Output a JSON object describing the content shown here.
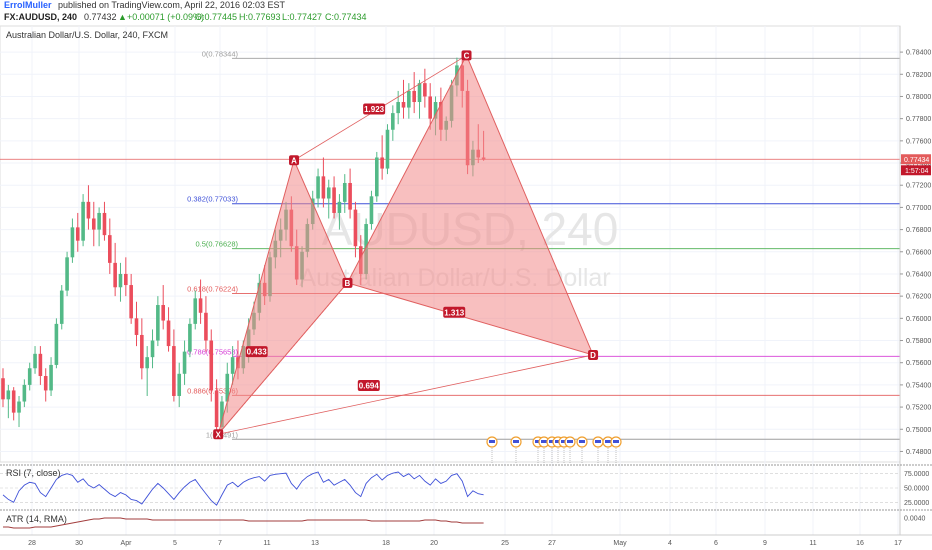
{
  "header": {
    "author": "ErrolMuller",
    "published": "published on TradingView.com, April 22, 2016 02:03 EST",
    "symbol_line": "FX:AUDUSD, 240",
    "change": "+0.00071 (+0.09%)",
    "open": "O:0.77445",
    "high": "H:0.77693",
    "low": "L:0.77427",
    "close": "C:0.77434",
    "last_value": "0.77432",
    "pane_title": "Australian Dollar/U.S. Dollar, 240, FXCM"
  },
  "watermark": {
    "symbol": "AUDUSD, 240",
    "name": "Australian Dollar/U.S. Dollar"
  },
  "price_tag": {
    "value": "0.77434",
    "countdown": "1:57:04"
  },
  "colors": {
    "up": "#53b987",
    "down": "#eb4d5c",
    "pattern_fill": "#f28b8b",
    "pattern_stroke": "#e06060",
    "label_bg": "#c2182b",
    "rsi": "#3f51d8",
    "atr": "#a23c3c",
    "price_line": "#e35b5b"
  },
  "chart_data": {
    "type": "candlestick",
    "y_range": [
      0.7475,
      0.785
    ],
    "y_ticks": [
      "0.78400",
      "0.78200",
      "0.78000",
      "0.77800",
      "0.77600",
      "0.77400",
      "0.77200",
      "0.77000",
      "0.76800",
      "0.76600",
      "0.76400",
      "0.76200",
      "0.76000",
      "0.75800",
      "0.75600",
      "0.75400",
      "0.75200",
      "0.75000",
      "0.74800"
    ],
    "x_ticks": [
      "28",
      "30",
      "Apr",
      "5",
      "7",
      "11",
      "13",
      "18",
      "20",
      "25",
      "27",
      "May",
      "4",
      "6",
      "9",
      "11",
      "16",
      "17"
    ],
    "candles": [
      [
        0.7546,
        0.7555,
        0.752,
        0.7527
      ],
      [
        0.7527,
        0.754,
        0.751,
        0.7535
      ],
      [
        0.7535,
        0.7538,
        0.7508,
        0.7515
      ],
      [
        0.7515,
        0.753,
        0.7502,
        0.7525
      ],
      [
        0.7525,
        0.7545,
        0.752,
        0.754
      ],
      [
        0.754,
        0.756,
        0.7535,
        0.7555
      ],
      [
        0.7555,
        0.7575,
        0.755,
        0.7568
      ],
      [
        0.7568,
        0.7575,
        0.754,
        0.7548
      ],
      [
        0.7548,
        0.7555,
        0.7525,
        0.7535
      ],
      [
        0.7535,
        0.7565,
        0.753,
        0.7558
      ],
      [
        0.7558,
        0.76,
        0.7555,
        0.7595
      ],
      [
        0.7595,
        0.763,
        0.759,
        0.7625
      ],
      [
        0.7625,
        0.766,
        0.762,
        0.7655
      ],
      [
        0.7655,
        0.769,
        0.765,
        0.7682
      ],
      [
        0.7682,
        0.7695,
        0.766,
        0.767
      ],
      [
        0.767,
        0.7712,
        0.7665,
        0.7705
      ],
      [
        0.7705,
        0.772,
        0.768,
        0.769
      ],
      [
        0.769,
        0.7705,
        0.7665,
        0.768
      ],
      [
        0.768,
        0.77,
        0.7665,
        0.7695
      ],
      [
        0.7695,
        0.7705,
        0.767,
        0.7675
      ],
      [
        0.7675,
        0.769,
        0.764,
        0.765
      ],
      [
        0.765,
        0.7668,
        0.762,
        0.7628
      ],
      [
        0.7628,
        0.765,
        0.7615,
        0.764
      ],
      [
        0.764,
        0.7655,
        0.762,
        0.763
      ],
      [
        0.763,
        0.764,
        0.7595,
        0.76
      ],
      [
        0.76,
        0.7615,
        0.7575,
        0.7585
      ],
      [
        0.7585,
        0.76,
        0.7545,
        0.7555
      ],
      [
        0.7555,
        0.7575,
        0.753,
        0.7565
      ],
      [
        0.7565,
        0.759,
        0.7555,
        0.758
      ],
      [
        0.758,
        0.762,
        0.7575,
        0.7612
      ],
      [
        0.7612,
        0.763,
        0.759,
        0.7598
      ],
      [
        0.7598,
        0.761,
        0.757,
        0.7575
      ],
      [
        0.7575,
        0.759,
        0.7525,
        0.753
      ],
      [
        0.753,
        0.756,
        0.752,
        0.755
      ],
      [
        0.755,
        0.758,
        0.754,
        0.757
      ],
      [
        0.757,
        0.76,
        0.7565,
        0.7595
      ],
      [
        0.7595,
        0.7625,
        0.759,
        0.7618
      ],
      [
        0.7618,
        0.7635,
        0.7595,
        0.7605
      ],
      [
        0.7605,
        0.762,
        0.757,
        0.758
      ],
      [
        0.758,
        0.759,
        0.7525,
        0.7535
      ],
      [
        0.7535,
        0.7545,
        0.7495,
        0.7502
      ],
      [
        0.7502,
        0.753,
        0.7496,
        0.7525
      ],
      [
        0.7525,
        0.756,
        0.7515,
        0.755
      ],
      [
        0.755,
        0.7575,
        0.754,
        0.7565
      ],
      [
        0.7565,
        0.758,
        0.7545,
        0.7555
      ],
      [
        0.7555,
        0.758,
        0.755,
        0.7575
      ],
      [
        0.7575,
        0.76,
        0.756,
        0.759
      ],
      [
        0.759,
        0.7615,
        0.7585,
        0.7605
      ],
      [
        0.7605,
        0.764,
        0.7598,
        0.7632
      ],
      [
        0.7632,
        0.7648,
        0.7612,
        0.762
      ],
      [
        0.762,
        0.766,
        0.7615,
        0.7655
      ],
      [
        0.7655,
        0.768,
        0.7645,
        0.767
      ],
      [
        0.767,
        0.769,
        0.7655,
        0.768
      ],
      [
        0.768,
        0.7705,
        0.767,
        0.7698
      ],
      [
        0.7698,
        0.771,
        0.766,
        0.7665
      ],
      [
        0.7665,
        0.768,
        0.763,
        0.7635
      ],
      [
        0.7635,
        0.7665,
        0.7628,
        0.766
      ],
      [
        0.766,
        0.769,
        0.7655,
        0.7685
      ],
      [
        0.7685,
        0.7715,
        0.768,
        0.7708
      ],
      [
        0.7708,
        0.7735,
        0.77,
        0.7728
      ],
      [
        0.7728,
        0.7745,
        0.77,
        0.7708
      ],
      [
        0.7708,
        0.7725,
        0.769,
        0.7718
      ],
      [
        0.7718,
        0.7728,
        0.769,
        0.7695
      ],
      [
        0.7695,
        0.7712,
        0.768,
        0.7705
      ],
      [
        0.7705,
        0.773,
        0.7695,
        0.7722
      ],
      [
        0.7722,
        0.7735,
        0.769,
        0.7698
      ],
      [
        0.7698,
        0.7705,
        0.7655,
        0.7665
      ],
      [
        0.7665,
        0.7675,
        0.763,
        0.764
      ],
      [
        0.764,
        0.769,
        0.7635,
        0.7685
      ],
      [
        0.7685,
        0.7715,
        0.768,
        0.771
      ],
      [
        0.771,
        0.775,
        0.7705,
        0.7745
      ],
      [
        0.7745,
        0.7765,
        0.7725,
        0.7735
      ],
      [
        0.7735,
        0.7775,
        0.773,
        0.777
      ],
      [
        0.777,
        0.7792,
        0.776,
        0.7785
      ],
      [
        0.7785,
        0.7805,
        0.7775,
        0.7795
      ],
      [
        0.7795,
        0.7815,
        0.778,
        0.779
      ],
      [
        0.779,
        0.7812,
        0.778,
        0.7805
      ],
      [
        0.7805,
        0.7822,
        0.7785,
        0.7795
      ],
      [
        0.7795,
        0.7815,
        0.778,
        0.7812
      ],
      [
        0.7812,
        0.7825,
        0.779,
        0.78
      ],
      [
        0.78,
        0.7812,
        0.777,
        0.778
      ],
      [
        0.778,
        0.78,
        0.7765,
        0.7795
      ],
      [
        0.7795,
        0.7808,
        0.776,
        0.777
      ],
      [
        0.777,
        0.7782,
        0.776,
        0.7778
      ],
      [
        0.7778,
        0.7815,
        0.7772,
        0.781
      ],
      [
        0.781,
        0.7835,
        0.78,
        0.7828
      ],
      [
        0.7828,
        0.7834,
        0.779,
        0.7805
      ],
      [
        0.7805,
        0.7815,
        0.773,
        0.7738
      ],
      [
        0.7738,
        0.776,
        0.7728,
        0.7752
      ],
      [
        0.7752,
        0.7775,
        0.774,
        0.7745
      ],
      [
        0.7745,
        0.7769,
        0.7742,
        0.7743
      ]
    ],
    "harmonic_points": [
      {
        "name": "X",
        "t": 40.3,
        "price": 0.74955
      },
      {
        "name": "A",
        "t": 54.5,
        "price": 0.77425
      },
      {
        "name": "B",
        "t": 64.5,
        "price": 0.7632
      },
      {
        "name": "C",
        "t": 86.8,
        "price": 0.7837
      },
      {
        "name": "D",
        "t": 110.5,
        "price": 0.7567
      }
    ],
    "ratios": [
      {
        "text": "1.923",
        "t": 69.5,
        "price": 0.77882
      },
      {
        "text": "0.433",
        "t": 47.5,
        "price": 0.75695
      },
      {
        "text": "1.313",
        "t": 84.5,
        "price": 0.7605
      },
      {
        "text": "0.694",
        "t": 68.5,
        "price": 0.7539
      }
    ],
    "fib_levels": [
      {
        "label": "0(0.78344)",
        "price": 0.78344,
        "color": "#9e9e9e"
      },
      {
        "label": "0.382(0.77033)",
        "price": 0.77033,
        "color": "#3f51d8"
      },
      {
        "label": "0.5(0.76628)",
        "price": 0.76628,
        "color": "#4caf50"
      },
      {
        "label": "0.618(0.76224)",
        "price": 0.76224,
        "color": "#e35b5b"
      },
      {
        "label": "0.786(0.75658)",
        "price": 0.75658,
        "color": "#d63fd6"
      },
      {
        "label": "0.886(0.75306)",
        "price": 0.75306,
        "color": "#e35b5b"
      },
      {
        "label": "1(0.7491)",
        "price": 0.7491,
        "color": "#9e9e9e"
      }
    ],
    "price_line": 0.77434,
    "rsi": {
      "label": "RSI (7, close)",
      "ticks": [
        "75.0000",
        "50.0000",
        "25.0000"
      ],
      "range": [
        15,
        85
      ],
      "values": [
        38,
        30,
        25,
        45,
        55,
        60,
        58,
        42,
        35,
        50,
        65,
        72,
        75,
        72,
        60,
        66,
        55,
        50,
        56,
        48,
        40,
        35,
        42,
        38,
        30,
        28,
        22,
        35,
        48,
        58,
        50,
        40,
        30,
        42,
        52,
        60,
        65,
        52,
        40,
        28,
        20,
        38,
        55,
        60,
        52,
        60,
        65,
        68,
        70,
        62,
        72,
        74,
        75,
        76,
        58,
        48,
        62,
        70,
        75,
        78,
        60,
        65,
        55,
        60,
        65,
        55,
        42,
        35,
        58,
        68,
        74,
        64,
        72,
        76,
        78,
        70,
        75,
        66,
        72,
        62,
        55,
        66,
        58,
        62,
        72,
        75,
        62,
        35,
        45,
        40,
        38
      ]
    },
    "atr": {
      "label": "ATR (14, RMA)",
      "ticks": [
        "0.0040"
      ],
      "range": [
        0.0025,
        0.0045
      ],
      "values": [
        0.0031,
        0.0031,
        0.003,
        0.003,
        0.003,
        0.003,
        0.0031,
        0.0031,
        0.0031,
        0.0031,
        0.0032,
        0.0033,
        0.0034,
        0.0035,
        0.0036,
        0.0037,
        0.0038,
        0.0039,
        0.0039,
        0.004,
        0.004,
        0.004,
        0.004,
        0.0039,
        0.0039,
        0.0039,
        0.0039,
        0.0039,
        0.0038,
        0.0038,
        0.0038,
        0.0038,
        0.0038,
        0.0038,
        0.0038,
        0.0038,
        0.0038,
        0.0038,
        0.0038,
        0.0038,
        0.0038,
        0.0038,
        0.0038,
        0.0038,
        0.0038,
        0.0038,
        0.0037,
        0.0037,
        0.0037,
        0.0037,
        0.0037,
        0.0037,
        0.0037,
        0.0037,
        0.0037,
        0.0037,
        0.0037,
        0.0038,
        0.0038,
        0.0038,
        0.0038,
        0.0038,
        0.0038,
        0.0038,
        0.0038,
        0.0038,
        0.0038,
        0.0038,
        0.0038,
        0.0037,
        0.0037,
        0.0037,
        0.0037,
        0.0037,
        0.0037,
        0.0037,
        0.0037,
        0.0037,
        0.0037,
        0.0038,
        0.0038,
        0.0038,
        0.0037,
        0.0037,
        0.0036,
        0.0036,
        0.0035,
        0.0035,
        0.0035,
        0.0035,
        0.0035
      ]
    }
  }
}
